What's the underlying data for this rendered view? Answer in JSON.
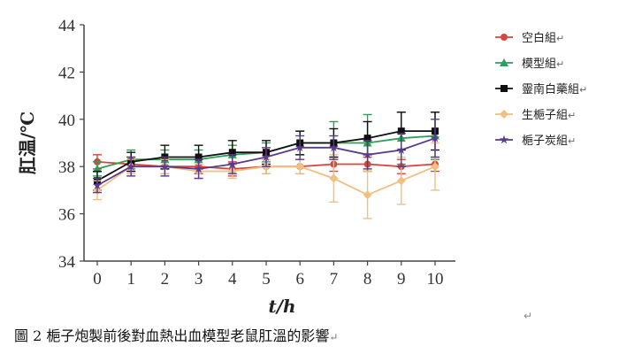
{
  "chart_data": {
    "type": "line",
    "title": "",
    "xlabel": "t/h",
    "ylabel": "肛温/℃",
    "x": [
      0,
      1,
      2,
      3,
      4,
      5,
      6,
      7,
      8,
      9,
      10
    ],
    "xlim": [
      0,
      10
    ],
    "ylim": [
      34,
      44
    ],
    "yticks": [
      34,
      36,
      38,
      40,
      42,
      44
    ],
    "grid": false,
    "error_bars": true,
    "legend_position": "right",
    "series": [
      {
        "name": "空白組",
        "color": "#d9453c",
        "marker": "circle",
        "values": [
          38.2,
          38.1,
          38.0,
          38.0,
          37.9,
          38.0,
          38.0,
          38.1,
          38.1,
          38.0,
          38.1
        ],
        "errors": [
          0.3,
          0.3,
          0.3,
          0.3,
          0.3,
          0.3,
          0.3,
          0.3,
          0.3,
          0.3,
          0.3
        ]
      },
      {
        "name": "模型組",
        "color": "#2e9e5b",
        "marker": "triangle",
        "values": [
          37.9,
          38.3,
          38.3,
          38.3,
          38.5,
          38.6,
          39.0,
          39.0,
          39.0,
          39.2,
          39.3
        ],
        "errors": [
          0.3,
          0.4,
          0.4,
          0.4,
          0.4,
          0.4,
          0.5,
          0.9,
          1.2,
          1.1,
          1.0
        ]
      },
      {
        "name": "靈南白藥組",
        "color": "#111111",
        "marker": "square",
        "values": [
          37.4,
          38.2,
          38.4,
          38.4,
          38.6,
          38.6,
          39.0,
          39.0,
          39.2,
          39.5,
          39.5
        ],
        "errors": [
          0.4,
          0.4,
          0.5,
          0.5,
          0.5,
          0.5,
          0.5,
          0.6,
          0.7,
          0.8,
          0.8
        ]
      },
      {
        "name": "生梔子組",
        "color": "#f0bf82",
        "marker": "diamond",
        "values": [
          37.0,
          38.0,
          38.0,
          37.8,
          37.8,
          38.0,
          38.0,
          37.5,
          36.8,
          37.4,
          38.0
        ],
        "errors": [
          0.4,
          0.3,
          0.3,
          0.3,
          0.3,
          0.3,
          0.3,
          1.0,
          1.0,
          1.0,
          1.0
        ]
      },
      {
        "name": "梔子炭組",
        "color": "#5a3a8c",
        "marker": "star",
        "values": [
          37.2,
          38.0,
          38.0,
          37.9,
          38.1,
          38.4,
          38.8,
          38.8,
          38.5,
          38.7,
          39.2
        ],
        "errors": [
          0.3,
          0.4,
          0.4,
          0.4,
          0.4,
          0.4,
          0.5,
          0.5,
          0.6,
          0.7,
          0.8
        ]
      }
    ]
  },
  "caption": "圖 2  梔子炮製前後對血熱出血模型老鼠肛溫的影響",
  "return_mark": "↵"
}
